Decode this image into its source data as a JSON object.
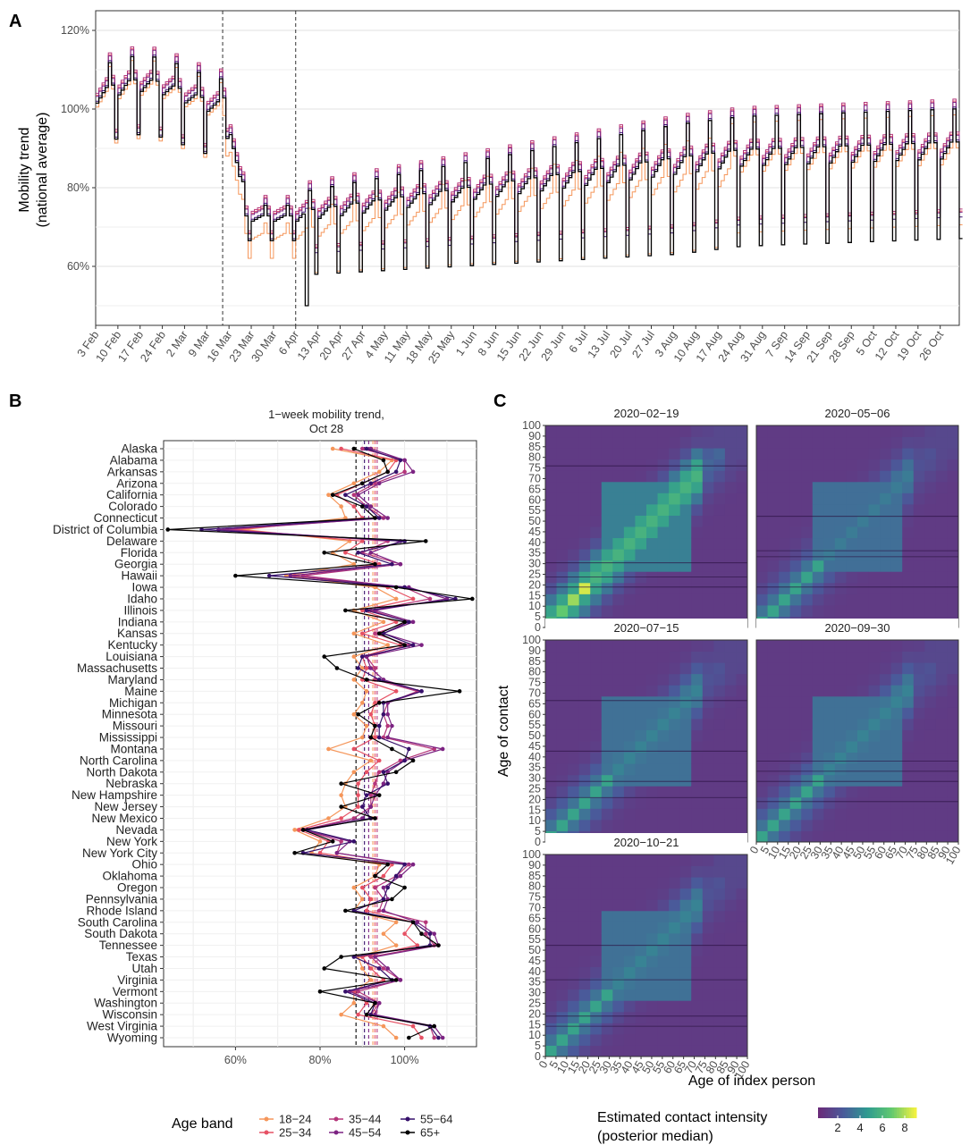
{
  "panels": {
    "a": "A",
    "b": "B",
    "c": "C"
  },
  "colors": {
    "18-24": "#f5965a",
    "25-34": "#e65164",
    "35-44": "#b5367a",
    "45-54": "#7c2382",
    "55-64": "#36106b",
    "65+": "#000000",
    "heat_low": "#6a2c7a",
    "heat_mid": "#2ea08d",
    "heat_high": "#f0f040"
  },
  "chart_data": [
    {
      "type": "line",
      "panel": "A",
      "ylabel_lines": [
        "Mobility trend",
        "(national average)"
      ],
      "ylim": [
        0.45,
        1.25
      ],
      "yticks": [
        0.6,
        0.8,
        1.0,
        1.2
      ],
      "ytick_labels": [
        "60%",
        "80%",
        "100%",
        "120%"
      ],
      "xlim_days": [
        0,
        272
      ],
      "xtick_labels": [
        "3 Feb",
        "10 Feb",
        "17 Feb",
        "24 Feb",
        "2 Mar",
        "9 Mar",
        "16 Mar",
        "23 Mar",
        "30 Mar",
        "6 Apr",
        "13 Apr",
        "20 Apr",
        "27 Apr",
        "4 May",
        "11 May",
        "18 May",
        "25 May",
        "1 Jun",
        "8 Jun",
        "15 Jun",
        "22 Jun",
        "29 Jun",
        "6 Jul",
        "13 Jul",
        "20 Jul",
        "27 Jul",
        "3 Aug",
        "10 Aug",
        "17 Aug",
        "24 Aug",
        "31 Aug",
        "7 Sep",
        "14 Sep",
        "21 Sep",
        "28 Sep",
        "5 Oct",
        "12 Oct",
        "19 Oct",
        "26 Oct"
      ],
      "vlines": [
        "14 Mar",
        "6 Apr"
      ],
      "series_names": [
        "18-24",
        "25-34",
        "35-44",
        "45-54",
        "55-64",
        "65+"
      ],
      "note": "Daily step series by age band; weekly periodic pattern with Mar 16 drop and recovery."
    },
    {
      "type": "scatter",
      "panel": "B",
      "title": "1−week mobility trend,",
      "subtitle": "Oct 28",
      "xlim": [
        0.43,
        1.17
      ],
      "xticks": [
        0.6,
        0.8,
        1.0
      ],
      "xtick_labels": [
        "60%",
        "80%",
        "100%"
      ],
      "states": [
        "Alaska",
        "Alabama",
        "Arkansas",
        "Arizona",
        "California",
        "Colorado",
        "Connecticut",
        "District of Columbia",
        "Delaware",
        "Florida",
        "Georgia",
        "Hawaii",
        "Iowa",
        "Idaho",
        "Illinois",
        "Indiana",
        "Kansas",
        "Kentucky",
        "Louisiana",
        "Massachusetts",
        "Maryland",
        "Maine",
        "Michigan",
        "Minnesota",
        "Missouri",
        "Mississippi",
        "Montana",
        "North Carolina",
        "North Dakota",
        "Nebraska",
        "New Hampshire",
        "New Jersey",
        "New Mexico",
        "Nevada",
        "New York",
        "New York City",
        "Ohio",
        "Oklahoma",
        "Oregon",
        "Pennsylvania",
        "Rhode Island",
        "South Carolina",
        "South Dakota",
        "Tennessee",
        "Texas",
        "Utah",
        "Virginia",
        "Vermont",
        "Washington",
        "Wisconsin",
        "West Virginia",
        "Wyoming"
      ],
      "series": [
        {
          "name": "18-24",
          "values": [
            0.83,
            0.97,
            0.94,
            0.88,
            0.82,
            0.85,
            0.86,
            0.62,
            0.87,
            0.83,
            0.88,
            0.72,
            0.93,
            0.98,
            0.88,
            0.95,
            0.88,
            0.96,
            0.88,
            0.9,
            0.88,
            0.91,
            0.9,
            0.88,
            0.91,
            0.9,
            0.82,
            0.92,
            0.88,
            0.86,
            0.85,
            0.86,
            0.82,
            0.74,
            0.8,
            0.78,
            0.94,
            0.93,
            0.88,
            0.9,
            0.88,
            0.98,
            0.95,
            0.98,
            0.89,
            0.9,
            0.92,
            0.88,
            0.88,
            0.85,
            0.95,
            0.98
          ]
        },
        {
          "name": "25-34",
          "values": [
            0.85,
            0.98,
            0.96,
            0.9,
            0.84,
            0.88,
            0.9,
            0.6,
            0.9,
            0.86,
            0.94,
            0.74,
            0.96,
            1.02,
            0.9,
            0.98,
            0.9,
            0.99,
            0.9,
            0.91,
            0.9,
            0.98,
            0.93,
            0.92,
            0.93,
            0.93,
            0.88,
            0.94,
            0.91,
            0.89,
            0.89,
            0.89,
            0.85,
            0.75,
            0.82,
            0.8,
            0.97,
            0.95,
            0.9,
            0.92,
            0.91,
            1.02,
            1.0,
            1.03,
            0.9,
            0.92,
            0.95,
            0.88,
            0.91,
            0.89,
            1.02,
            1.04
          ]
        },
        {
          "name": "35-44",
          "values": [
            0.9,
            1.0,
            1.0,
            0.93,
            0.88,
            0.91,
            0.95,
            0.58,
            0.96,
            0.9,
            0.99,
            0.76,
            1.0,
            1.06,
            0.92,
            1.01,
            0.93,
            1.01,
            0.91,
            0.93,
            0.93,
            1.03,
            0.96,
            0.95,
            0.96,
            0.95,
            1.07,
            0.99,
            0.94,
            0.93,
            0.92,
            0.92,
            0.88,
            0.76,
            0.85,
            0.84,
            1.01,
            0.98,
            0.93,
            0.95,
            0.94,
            1.05,
            1.05,
            1.07,
            0.92,
            0.95,
            0.99,
            0.89,
            0.94,
            0.92,
            1.06,
            1.07
          ]
        },
        {
          "name": "45-54",
          "values": [
            0.92,
            1.0,
            1.02,
            0.94,
            0.89,
            0.92,
            0.96,
            0.56,
            0.99,
            0.92,
            0.99,
            0.73,
            1.01,
            1.1,
            0.93,
            1.02,
            0.95,
            1.04,
            0.91,
            0.92,
            0.95,
            1.04,
            0.96,
            0.96,
            0.97,
            0.96,
            1.09,
            1.0,
            0.96,
            0.95,
            0.93,
            0.92,
            0.9,
            0.76,
            0.87,
            0.84,
            1.02,
            0.99,
            0.95,
            0.96,
            0.95,
            1.03,
            1.07,
            1.08,
            0.93,
            0.96,
            0.99,
            0.87,
            0.94,
            0.93,
            1.07,
            1.09
          ]
        },
        {
          "name": "55-64",
          "values": [
            0.91,
            0.99,
            0.98,
            0.92,
            0.86,
            0.91,
            0.94,
            0.52,
            1.0,
            0.89,
            0.97,
            0.68,
            1.0,
            1.12,
            0.91,
            1.01,
            0.95,
            1.02,
            0.9,
            0.89,
            0.94,
            1.04,
            0.95,
            0.95,
            0.94,
            0.94,
            1.01,
            1.0,
            0.95,
            0.96,
            0.91,
            0.9,
            0.92,
            0.77,
            0.88,
            0.76,
            1.0,
            0.98,
            0.96,
            0.95,
            0.88,
            1.02,
            1.06,
            1.06,
            0.88,
            0.94,
            0.97,
            0.86,
            0.93,
            0.92,
            1.06,
            1.08
          ]
        },
        {
          "name": "65+",
          "values": [
            0.88,
            0.95,
            0.96,
            0.9,
            0.83,
            0.9,
            0.93,
            0.44,
            1.05,
            0.81,
            0.93,
            0.6,
            0.98,
            1.16,
            0.86,
            1.0,
            0.94,
            1.0,
            0.81,
            0.84,
            0.91,
            1.13,
            0.94,
            0.89,
            0.93,
            0.92,
            0.97,
            1.02,
            0.98,
            0.85,
            0.94,
            0.85,
            0.93,
            0.76,
            0.83,
            0.74,
            0.96,
            0.93,
            1.0,
            0.97,
            0.86,
            1.02,
            1.04,
            1.08,
            0.85,
            0.81,
            0.98,
            0.8,
            0.93,
            0.91,
            1.07,
            1.01
          ]
        }
      ],
      "vlines": [
        0.885,
        0.905,
        0.915,
        0.925,
        0.93,
        0.935
      ]
    },
    {
      "type": "heatmap",
      "panel": "C",
      "xlabel": "Age of index person",
      "ylabel": "Age of contact",
      "ticks": [
        "0",
        "5",
        "10",
        "15",
        "20",
        "25",
        "30",
        "35",
        "40",
        "45",
        "50",
        "55",
        "60",
        "65",
        "70",
        "75",
        "80",
        "85",
        "90",
        "100"
      ],
      "dates": [
        "2020−02−19",
        "2020−05−06",
        "2020−07−15",
        "2020−09−30",
        "2020−10−21"
      ],
      "legend_title_lines": [
        "Estimated contact intensity",
        "(posterior median)"
      ],
      "legend_ticks": [
        "2",
        "4",
        "6",
        "8"
      ]
    }
  ],
  "legend": {
    "title": "Age band",
    "items": [
      "18−24",
      "25−34",
      "35−44",
      "45−54",
      "55−64",
      "65+"
    ]
  }
}
